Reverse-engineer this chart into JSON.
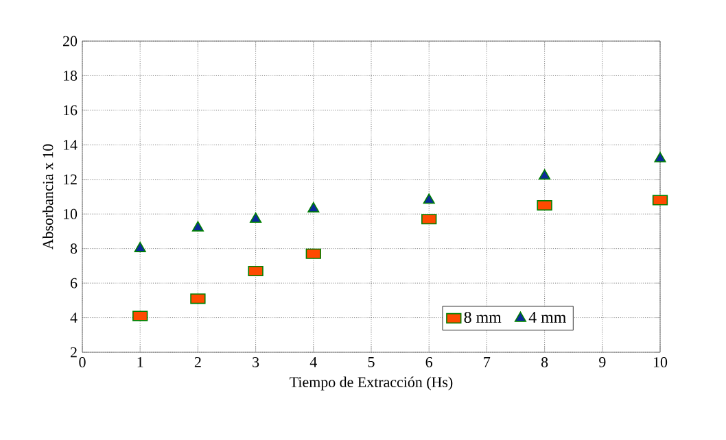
{
  "chart_data": {
    "type": "scatter",
    "xlabel": "Tiempo de Extracción (Hs)",
    "ylabel": "Absorbancia x 10",
    "x": [
      1,
      2,
      3,
      4,
      6,
      8,
      10
    ],
    "series": [
      {
        "name": "8 mm",
        "color": "#ff4a00",
        "marker": "square",
        "values": [
          4.1,
          5.1,
          6.7,
          7.7,
          9.7,
          10.5,
          10.8
        ]
      },
      {
        "name": "4 mm",
        "color": "#0a2a9a",
        "marker": "triangle",
        "values": [
          8.0,
          9.2,
          9.7,
          10.3,
          10.8,
          12.2,
          13.2
        ]
      }
    ],
    "xlim": [
      0,
      10
    ],
    "ylim": [
      2,
      20
    ],
    "xticks": [
      0,
      1,
      2,
      3,
      4,
      5,
      6,
      7,
      8,
      9,
      10
    ],
    "yticks": [
      2,
      4,
      6,
      8,
      10,
      12,
      14,
      16,
      18,
      20
    ],
    "grid": true,
    "legend": "bottom right"
  }
}
